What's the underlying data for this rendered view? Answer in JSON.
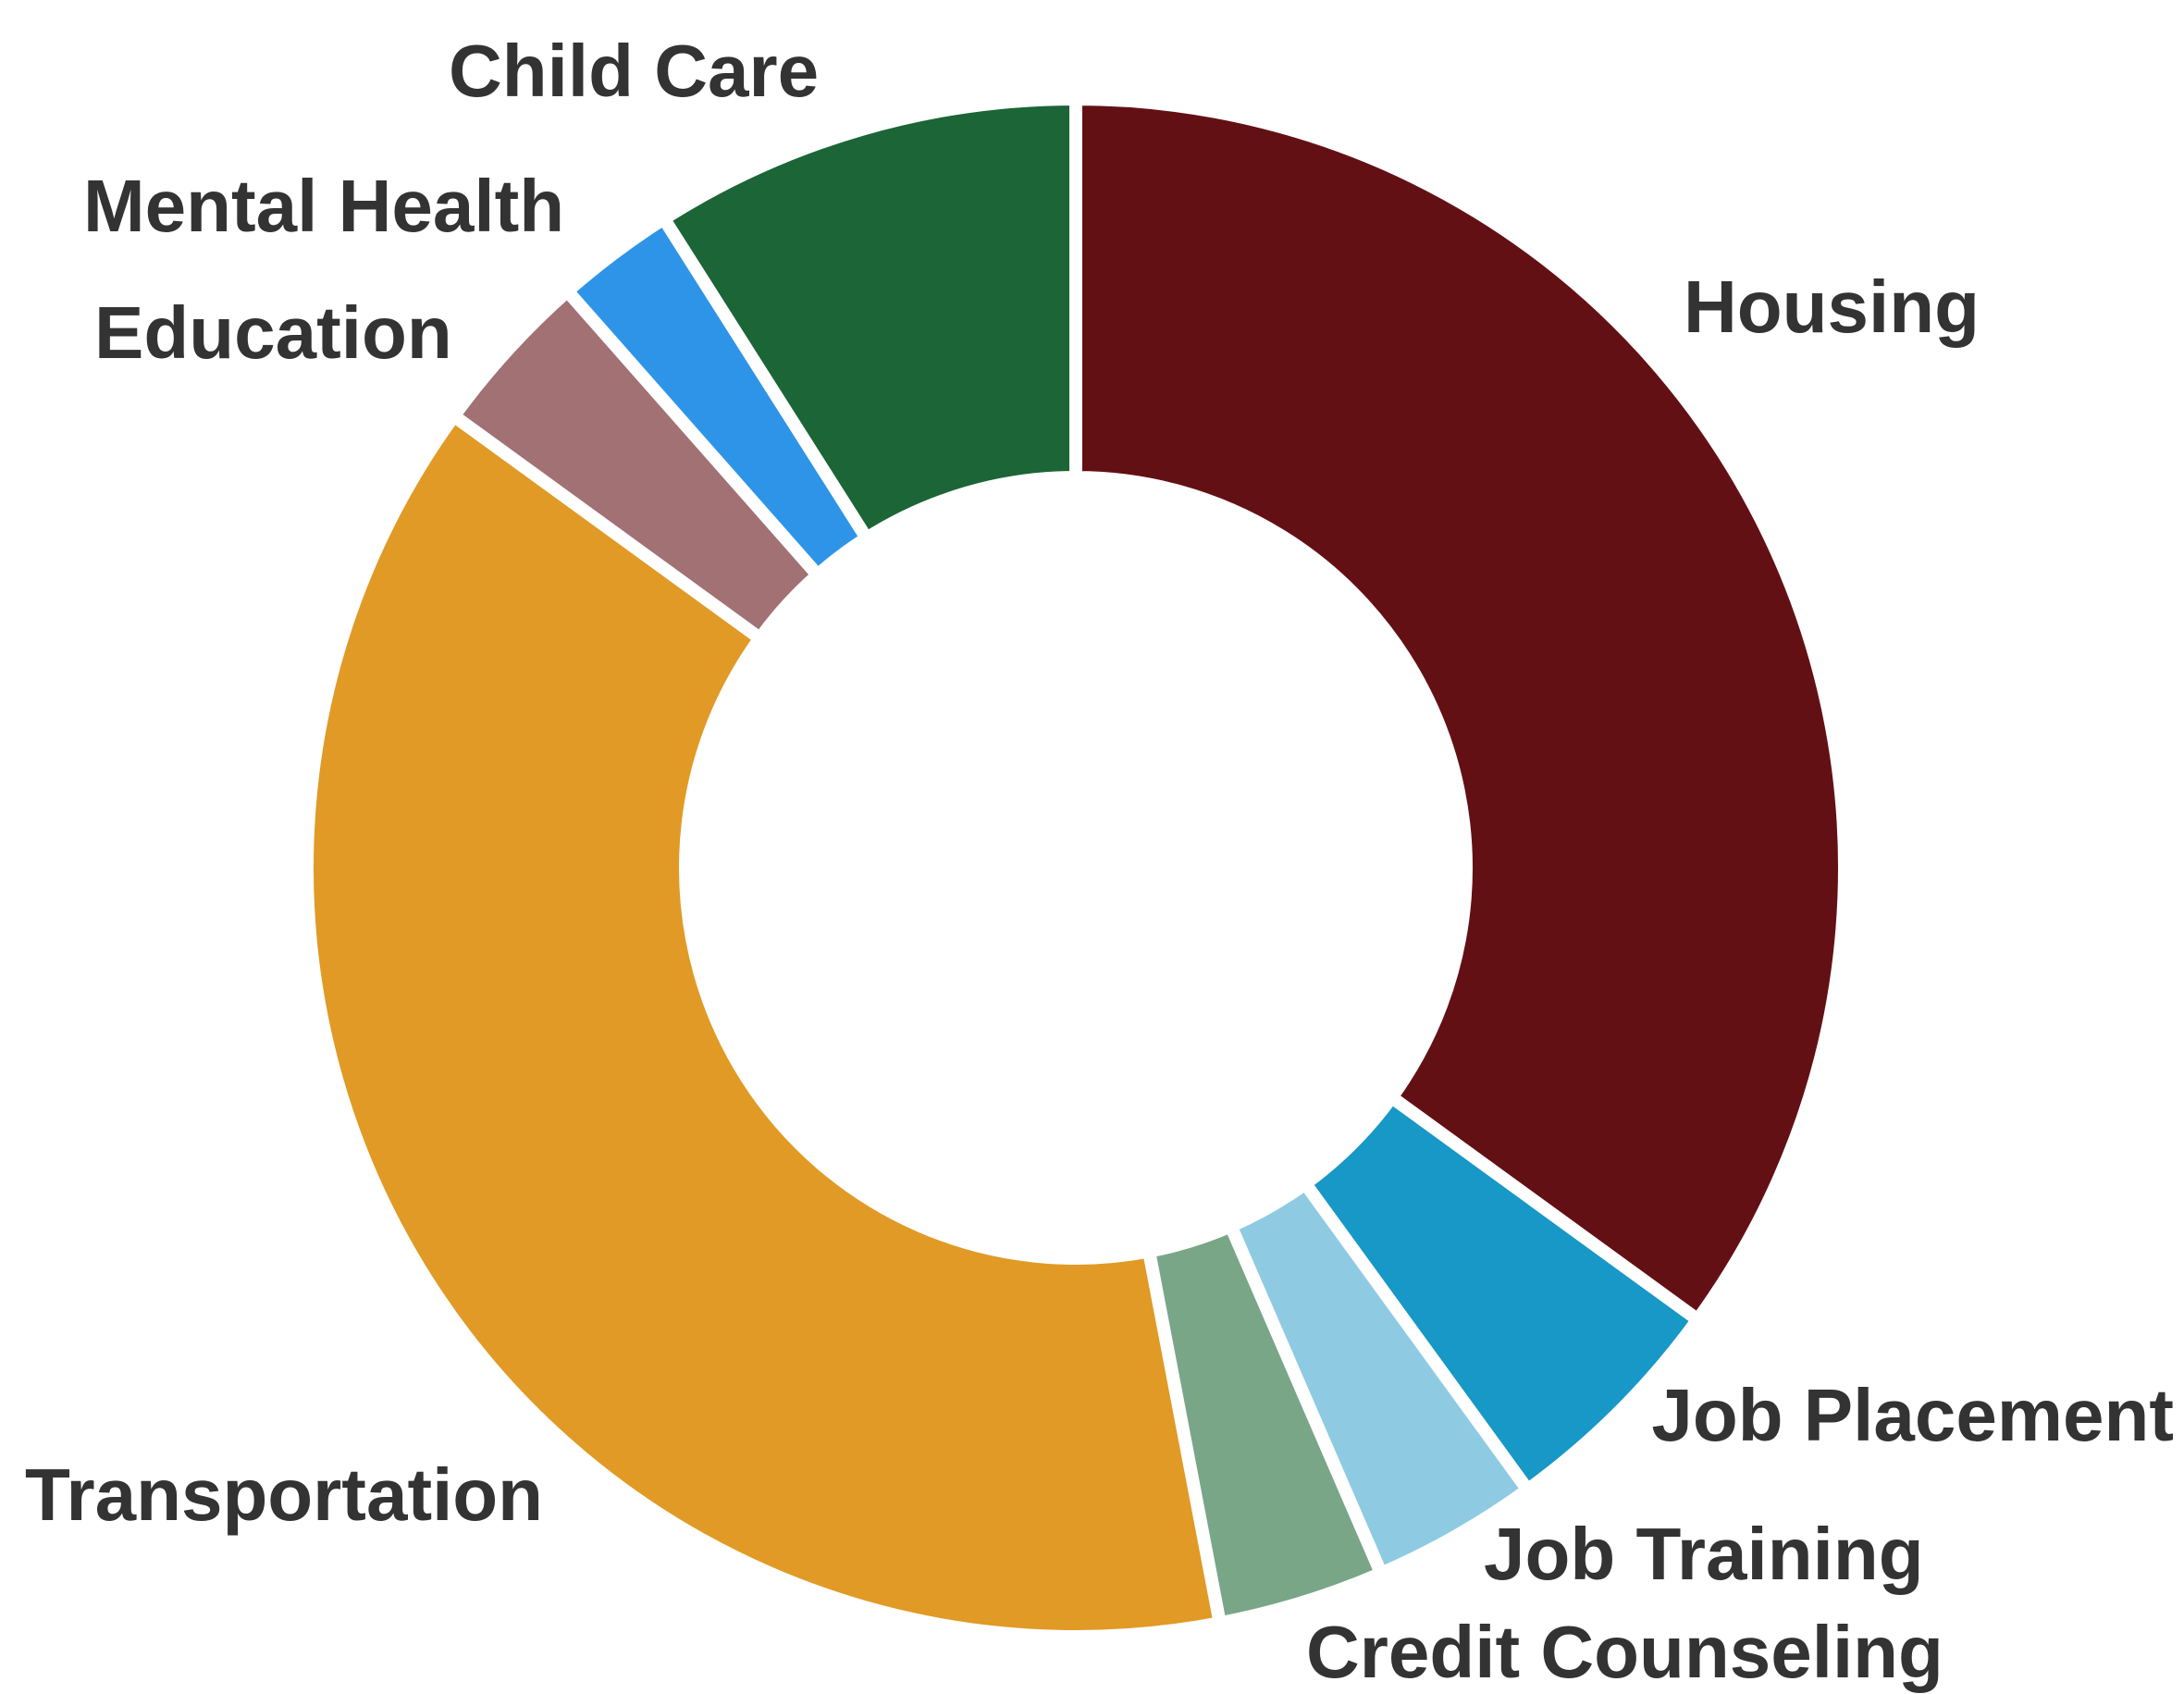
{
  "chart_data": {
    "type": "donut",
    "categories": [
      "Housing",
      "Job Placement",
      "Job Training",
      "Credit Counseling",
      "Transportation",
      "Education",
      "Mental Health",
      "Child Care"
    ],
    "values": [
      35,
      5,
      3.5,
      3.5,
      38,
      3.5,
      2.5,
      9
    ],
    "colors": [
      "#631015",
      "#1798c6",
      "#8ecbe3",
      "#79a687",
      "#e09a25",
      "#a17174",
      "#2e94e8",
      "#1b6536"
    ]
  }
}
